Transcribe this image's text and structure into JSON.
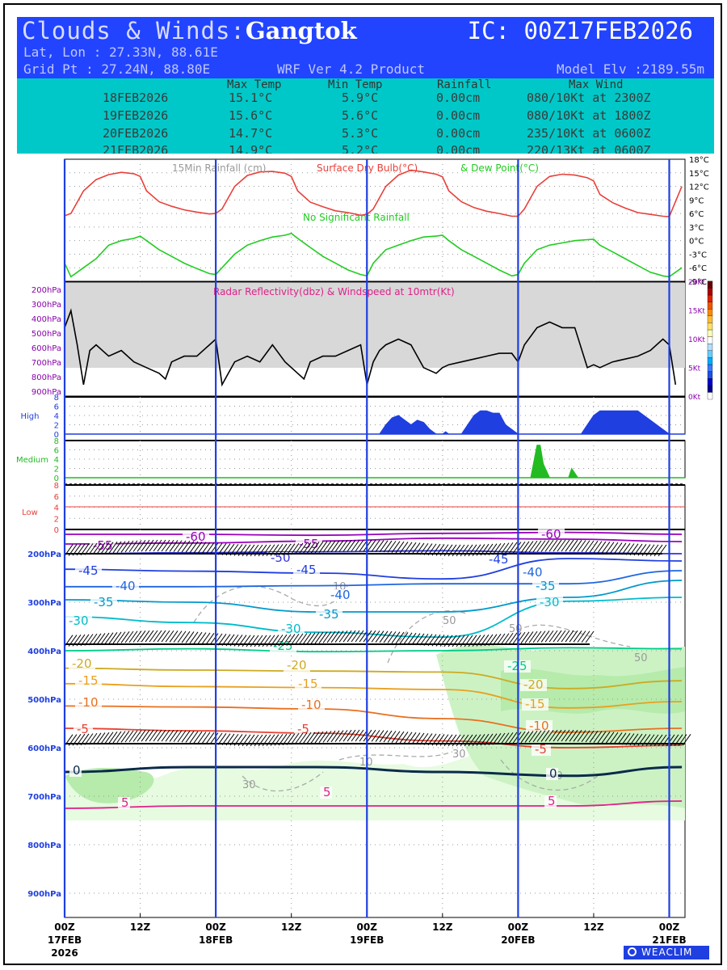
{
  "header": {
    "title_prefix": "Clouds & Winds:",
    "location": "Gangtok",
    "ic": "IC: 00Z17FEB2026",
    "latlon": "Lat, Lon : 27.33N, 88.61E",
    "gridpt": "Grid Pt  : 27.24N, 88.80E",
    "product": "WRF Ver 4.2 Product",
    "model_elv": "Model Elv :2189.55m"
  },
  "summary_table": {
    "columns": [
      "Max Temp",
      "Min Temp",
      "Rainfall",
      "Max Wind"
    ],
    "rows": [
      {
        "date": "18FEB2026",
        "max_temp": "15.1°C",
        "min_temp": "5.9°C",
        "rain": "0.00cm",
        "wind": "080/10Kt at 2300Z"
      },
      {
        "date": "19FEB2026",
        "max_temp": "15.6°C",
        "min_temp": "5.6°C",
        "rain": "0.00cm",
        "wind": "080/10Kt at 1800Z"
      },
      {
        "date": "20FEB2026",
        "max_temp": "14.7°C",
        "min_temp": "5.3°C",
        "rain": "0.00cm",
        "wind": "235/10Kt at 0600Z"
      },
      {
        "date": "21FEB2026",
        "max_temp": "14.9°C",
        "min_temp": "5.2°C",
        "rain": "0.00cm",
        "wind": "220/13Kt at 0600Z"
      }
    ]
  },
  "chart_data": [
    {
      "type": "line",
      "name": "temperature-panel",
      "legend": [
        "15Min Rainfall (cm)",
        "Surface Dry Bulb(°C)",
        "& Dew Point(°C)"
      ],
      "annotation": "No Significant Rainfall",
      "y_ticks": [
        "18°C",
        "15°C",
        "12°C",
        "9°C",
        "6°C",
        "3°C",
        "0°C",
        "-3°C",
        "-6°C",
        "-9°C"
      ],
      "ylim": [
        -9,
        18
      ],
      "x_hours": [
        0,
        1,
        3,
        5,
        7,
        9,
        11,
        12,
        13,
        15,
        17,
        19,
        21,
        23,
        24,
        25,
        27,
        29,
        31,
        33,
        35,
        36,
        37,
        39,
        41,
        43,
        45,
        47,
        48,
        49,
        51,
        53,
        55,
        57,
        59,
        60,
        61,
        63,
        65,
        67,
        69,
        71,
        72,
        73,
        75,
        77,
        79,
        81,
        83,
        84,
        85,
        87,
        89,
        91,
        93,
        95,
        96,
        98
      ],
      "series": [
        {
          "name": "Surface Dry Bulb",
          "color": "#e8403a",
          "values": [
            5.5,
            6,
            11,
            13.5,
            14.6,
            15.1,
            14.8,
            14.2,
            11,
            8.6,
            7.6,
            6.8,
            6.3,
            5.9,
            6,
            7,
            12,
            14.4,
            15.2,
            15.3,
            14.9,
            14.2,
            11,
            8.5,
            7.5,
            6.6,
            6.2,
            5.6,
            5.8,
            7,
            12,
            14.5,
            15.6,
            15.2,
            14.7,
            14.1,
            11,
            8.6,
            7.3,
            6.5,
            6,
            5.4,
            5.4,
            7,
            12,
            14.2,
            14.7,
            14.5,
            13.9,
            13.2,
            10.2,
            8.4,
            7.2,
            6.2,
            5.8,
            5.4,
            5.3,
            12
          ]
        },
        {
          "name": "Dew Point",
          "color": "#22cc22",
          "values": [
            -5,
            -8,
            -6,
            -4,
            -1,
            0,
            0.5,
            1,
            0,
            -2,
            -3.5,
            -5,
            -6.2,
            -7.3,
            -7.5,
            -6,
            -3,
            -1,
            0,
            0.8,
            1.2,
            1.6,
            0.5,
            -1.5,
            -3.5,
            -5,
            -6.5,
            -7.5,
            -7.8,
            -5,
            -2,
            -1,
            0,
            0.8,
            1,
            1.2,
            0,
            -2,
            -3.5,
            -5,
            -6.5,
            -7.8,
            -7.5,
            -5,
            -2,
            -1,
            -0.5,
            0,
            0.2,
            0.3,
            -1,
            -2.5,
            -4,
            -5.5,
            -7,
            -7.8,
            -8,
            -6
          ]
        }
      ]
    },
    {
      "type": "line",
      "name": "wind-panel",
      "title": "Radar Reflectivity(dbz) & Windspeed at 10mtr(Kt)",
      "p_levels": [
        "200hPa",
        "300hPa",
        "400hPa",
        "500hPa",
        "600hPa",
        "700hPa",
        "800hPa",
        "900hPa"
      ],
      "kt_ticks": [
        "20Kt",
        "15Kt",
        "10Kt",
        "5Kt",
        "0Kt"
      ],
      "ylim": [
        0,
        20
      ],
      "x_hours": [
        0,
        1,
        2,
        3,
        4,
        5,
        7,
        9,
        11,
        13,
        15,
        16,
        17,
        19,
        21,
        23,
        24,
        25,
        26,
        27,
        29,
        31,
        33,
        35,
        37,
        38,
        39,
        41,
        43,
        45,
        47,
        48,
        49,
        50,
        51,
        53,
        55,
        57,
        59,
        60,
        61,
        63,
        65,
        67,
        69,
        71,
        72,
        73,
        75,
        77,
        79,
        81,
        83,
        84,
        85,
        87,
        89,
        91,
        93,
        95,
        96,
        97
      ],
      "series": [
        {
          "name": "Windspeed",
          "color": "#000000",
          "values": [
            12,
            15,
            9,
            2,
            8,
            9,
            7,
            8,
            6,
            5,
            4,
            3,
            6,
            7,
            7,
            9,
            10,
            2,
            4,
            6,
            7,
            6,
            9,
            6,
            4,
            3,
            6,
            7,
            7,
            8,
            9,
            2,
            6,
            8,
            9,
            10,
            9,
            5,
            4,
            5,
            5.5,
            6,
            6.5,
            7,
            7.5,
            7.5,
            6,
            9,
            12,
            13,
            12,
            12,
            5,
            5.5,
            5,
            6,
            6.5,
            7,
            8,
            10,
            9,
            2
          ]
        }
      ]
    },
    {
      "type": "area",
      "name": "high-cloud",
      "label": "High",
      "color": "#1f3fe0",
      "ylim": [
        0,
        8
      ],
      "x_hours": [
        0,
        50,
        51,
        52,
        53,
        54,
        55,
        56,
        57,
        58,
        59,
        60,
        60.5,
        61,
        63,
        64,
        65,
        66,
        67,
        68,
        69,
        70,
        71,
        72,
        74,
        82,
        83,
        84,
        85,
        86,
        87,
        88,
        89,
        90,
        91,
        92,
        93,
        94,
        95,
        96,
        98
      ],
      "values": [
        0,
        0,
        2,
        3.5,
        4,
        3,
        2,
        3,
        2.5,
        1,
        0,
        0,
        0.5,
        0,
        0,
        2,
        4,
        5,
        5,
        4.5,
        4.5,
        2,
        1,
        0,
        0,
        0,
        2,
        4,
        5,
        5,
        5,
        5,
        5,
        5,
        5,
        4,
        3,
        2,
        1,
        0,
        0
      ]
    },
    {
      "type": "area",
      "name": "medium-cloud",
      "label": "Medium",
      "color": "#22bb22",
      "ylim": [
        0,
        8
      ],
      "x_hours": [
        0,
        73,
        74,
        75,
        75.5,
        76,
        77,
        79,
        80,
        80.5,
        81,
        81.5,
        98
      ],
      "values": [
        0,
        0,
        0,
        7,
        7,
        3,
        0,
        0,
        0,
        2,
        1,
        0,
        0
      ]
    },
    {
      "type": "area",
      "name": "low-cloud",
      "label": "Low",
      "color": "#e8403a",
      "ylim": [
        0,
        8
      ],
      "x_hours": [
        0,
        98
      ],
      "values": [
        0,
        0
      ]
    },
    {
      "type": "line",
      "name": "upper-air-panel",
      "y_levels": [
        "200hPa",
        "300hPa",
        "400hPa",
        "500hPa",
        "600hPa",
        "700hPa",
        "800hPa",
        "900hPa"
      ],
      "x_ticks": [
        "00Z",
        "12Z",
        "00Z",
        "12Z",
        "00Z",
        "12Z",
        "00Z",
        "12Z",
        "00Z"
      ],
      "date_labels": [
        "17FEB",
        "18FEB",
        "19FEB",
        "20FEB",
        "21FEB"
      ],
      "year_label": "2026",
      "contours": [
        {
          "label": "-60",
          "color": "#9900bb",
          "pressures": [
            160,
            160,
            162,
            158,
            156,
            160
          ]
        },
        {
          "label": "-55",
          "color": "#9900bb",
          "pressures": [
            180,
            178,
            174,
            168,
            170,
            175
          ]
        },
        {
          "label": "-50",
          "color": "#3333dd",
          "pressures": [
            200,
            198,
            196,
            194,
            198,
            200
          ]
        },
        {
          "label": "-45",
          "color": "#1f3fe0",
          "pressures": [
            232,
            236,
            240,
            252,
            210,
            215
          ]
        },
        {
          "label": "-40",
          "color": "#1f66e0",
          "pressures": [
            268,
            268,
            266,
            262,
            262,
            235
          ]
        },
        {
          "label": "-35",
          "color": "#0099cc",
          "pressures": [
            295,
            300,
            320,
            320,
            290,
            255
          ]
        },
        {
          "label": "-30",
          "color": "#00bbcc",
          "pressures": [
            330,
            342,
            362,
            372,
            298,
            290
          ]
        },
        {
          "label": "-25",
          "color": "#00cc88",
          "pressures": [
            400,
            396,
            402,
            400,
            394,
            396
          ]
        },
        {
          "label": "-20",
          "color": "#ccaa22",
          "pressures": [
            436,
            440,
            442,
            444,
            478,
            462
          ]
        },
        {
          "label": "-15",
          "color": "#e8a020",
          "pressures": [
            468,
            474,
            476,
            480,
            518,
            505
          ]
        },
        {
          "label": "-10",
          "color": "#e87020",
          "pressures": [
            514,
            516,
            520,
            540,
            568,
            560
          ]
        },
        {
          "label": "-5",
          "color": "#e84030",
          "pressures": [
            560,
            565,
            570,
            586,
            600,
            595
          ]
        },
        {
          "label": "0",
          "color": "#0a2a4a",
          "pressures": [
            650,
            640,
            640,
            650,
            658,
            640
          ]
        },
        {
          "label": "5",
          "color": "#e0208a",
          "pressures": [
            725,
            720,
            720,
            720,
            720,
            710
          ]
        }
      ],
      "rh_labels": [
        "10",
        "30",
        "50",
        "10",
        "30",
        "50",
        "30",
        "50"
      ],
      "wind_barb_levels": [
        "200hPa",
        "400hPa",
        "600hPa"
      ]
    }
  ],
  "footer": {
    "logo_text": "WEACLIM"
  }
}
